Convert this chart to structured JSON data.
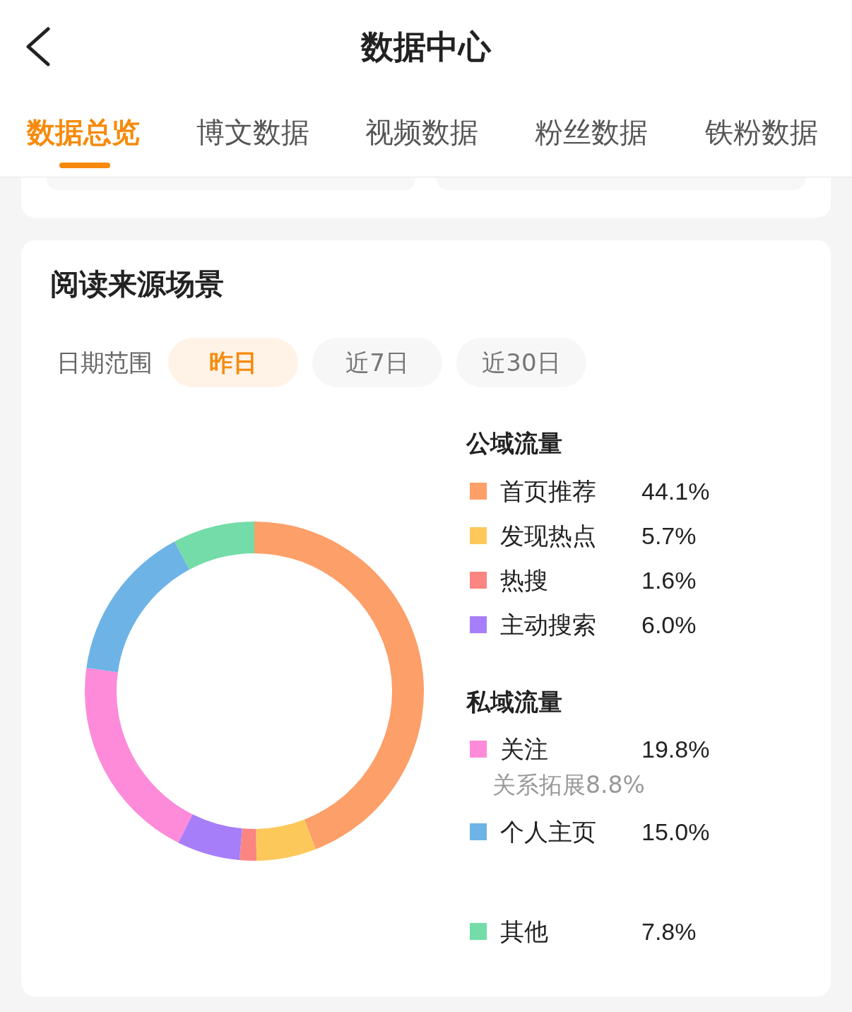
{
  "chart_data": {
    "type": "donut",
    "title": "阅读来源场景",
    "categories": [
      "首页推荐",
      "发现热点",
      "热搜",
      "主动搜索",
      "关注",
      "个人主页",
      "其他"
    ],
    "values": [
      44.1,
      5.7,
      1.6,
      6.0,
      19.8,
      15.0,
      7.8
    ],
    "value_labels": [
      "44.1%",
      "5.7%",
      "1.6%",
      "6.0%",
      "19.8%",
      "15.0%",
      "7.8%"
    ],
    "colors": [
      "#fd9f68",
      "#fdc85a",
      "#fa8581",
      "#a67ef9",
      "#fd8bd9",
      "#6db3e6",
      "#73dca8"
    ],
    "legend": "right",
    "annotations": [
      "数据中心",
      "数据总览",
      "博文数据",
      "视频数据",
      "粉丝数据",
      "铁粉数据",
      "日期范围",
      "昨日",
      "近7日",
      "近30日",
      "公域流量",
      "私域流量",
      "关系拓展8.8%"
    ]
  }
}
